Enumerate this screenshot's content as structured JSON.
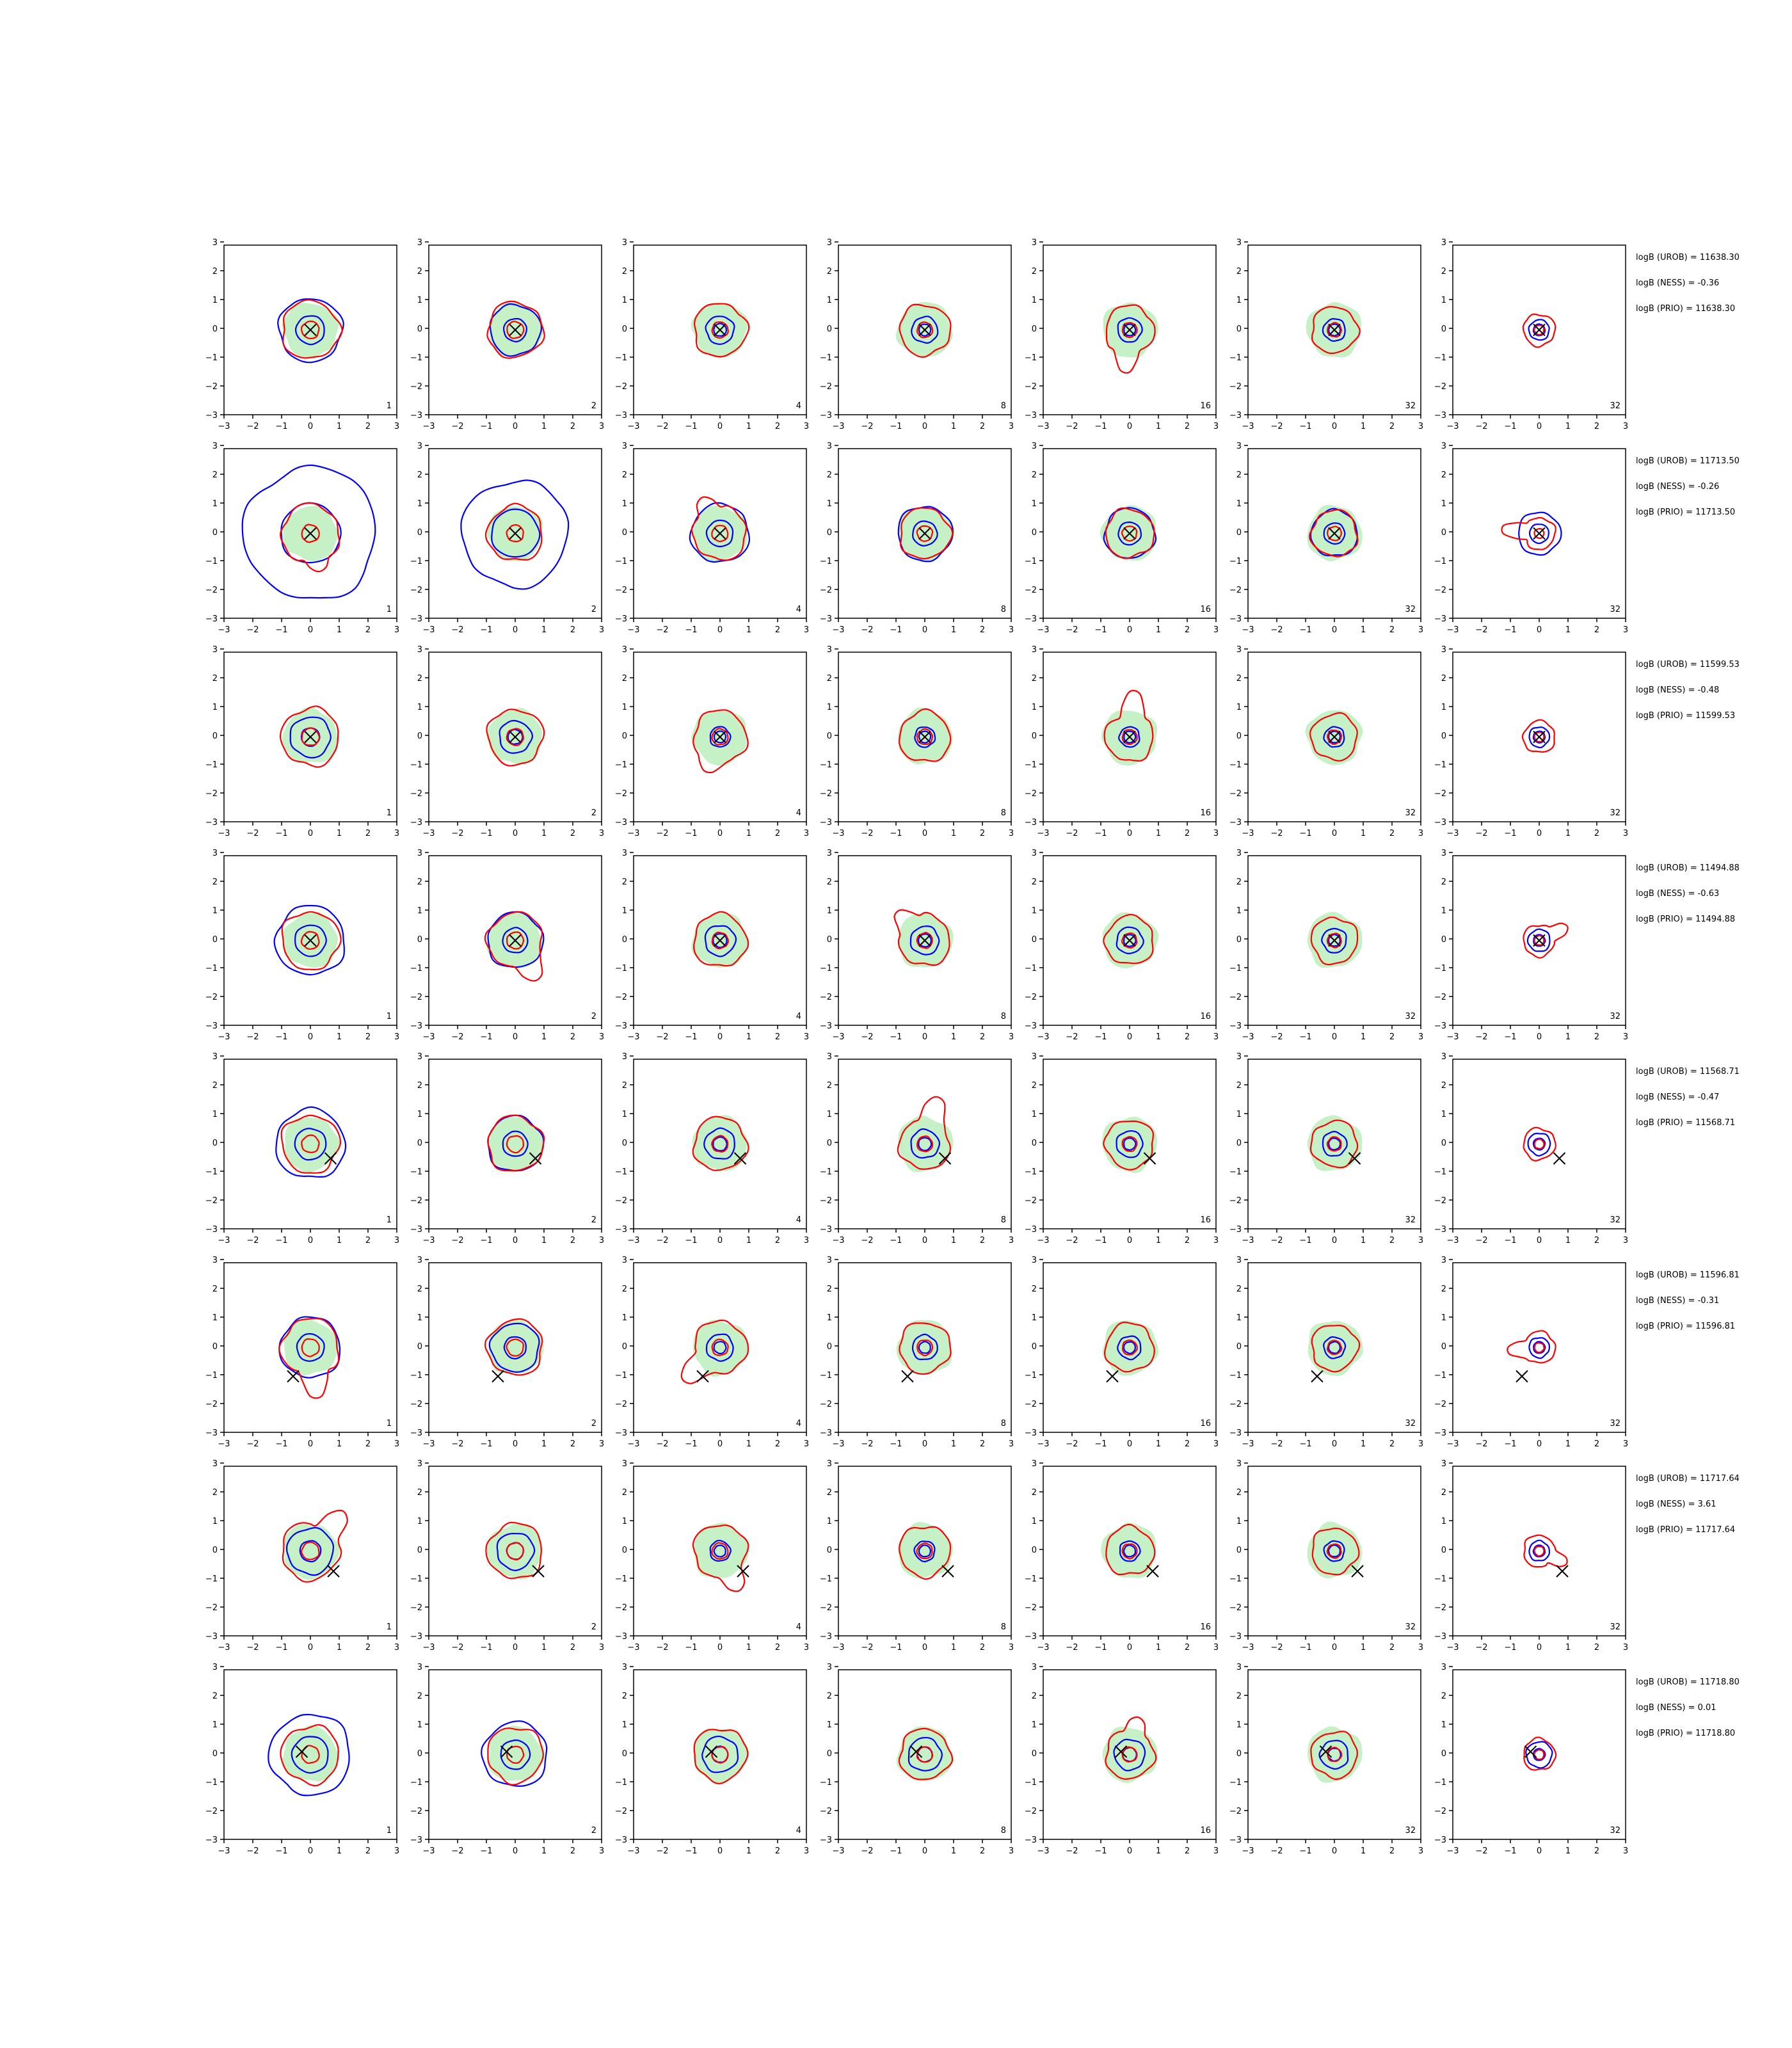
{
  "chart_data": {
    "type": "contour",
    "grid_rows": 8,
    "grid_cols": 7,
    "xlim": [
      -3,
      3
    ],
    "ylim": [
      -3,
      3
    ],
    "ticks": [
      "−3",
      "−2",
      "−1",
      "0",
      "1",
      "2",
      "3"
    ],
    "tick_values": [
      -3,
      -2,
      -1,
      0,
      1,
      2,
      3
    ],
    "panel_labels": [
      "1",
      "2",
      "4",
      "8",
      "16",
      "32",
      "32"
    ],
    "colors": {
      "samples_fill": "#c6f0c6",
      "red_contour": "#ff0000",
      "blue_contour": "#0000ff",
      "marker": "#000000"
    },
    "rows": [
      {
        "true_point": [
          0.0,
          0.0
        ],
        "outer_blue_radius": 1.1,
        "stats": [
          "logB (UROB) = 11638.30",
          "logB (NESS) = -0.36",
          "logB (PRIO) = 11638.30"
        ]
      },
      {
        "true_point": [
          0.0,
          0.0
        ],
        "outer_blue_radius": 2.3,
        "stats": [
          "logB (UROB) = 11713.50",
          "logB (NESS) = -0.26",
          "logB (PRIO) = 11713.50"
        ]
      },
      {
        "true_point": [
          0.0,
          0.0
        ],
        "outer_blue_radius": 0.7,
        "stats": [
          "logB (UROB) = 11599.53",
          "logB (NESS) = -0.48",
          "logB (PRIO) = 11599.53"
        ]
      },
      {
        "true_point": [
          0.0,
          0.0
        ],
        "outer_blue_radius": 1.2,
        "stats": [
          "logB (UROB) = 11494.88",
          "logB (NESS) = -0.63",
          "logB (PRIO) = 11494.88"
        ]
      },
      {
        "true_point": [
          0.7,
          -0.5
        ],
        "outer_blue_radius": 1.2,
        "stats": [
          "logB (UROB) = 11568.71",
          "logB (NESS) = -0.47",
          "logB (PRIO) = 11568.71"
        ]
      },
      {
        "true_point": [
          -0.6,
          -1.0
        ],
        "outer_blue_radius": 1.05,
        "stats": [
          "logB (UROB) = 11596.81",
          "logB (NESS) = -0.31",
          "logB (PRIO) = 11596.81"
        ]
      },
      {
        "true_point": [
          0.8,
          -0.7
        ],
        "outer_blue_radius": 0.8,
        "stats": [
          "logB (UROB) = 11717.64",
          "logB (NESS) = 3.61",
          "logB (PRIO) = 11717.64"
        ]
      },
      {
        "true_point": [
          -0.3,
          0.1
        ],
        "outer_blue_radius": 1.4,
        "stats": [
          "logB (UROB) = 11718.80",
          "logB (NESS) = 0.01",
          "logB (PRIO) = 11718.80"
        ]
      }
    ]
  }
}
